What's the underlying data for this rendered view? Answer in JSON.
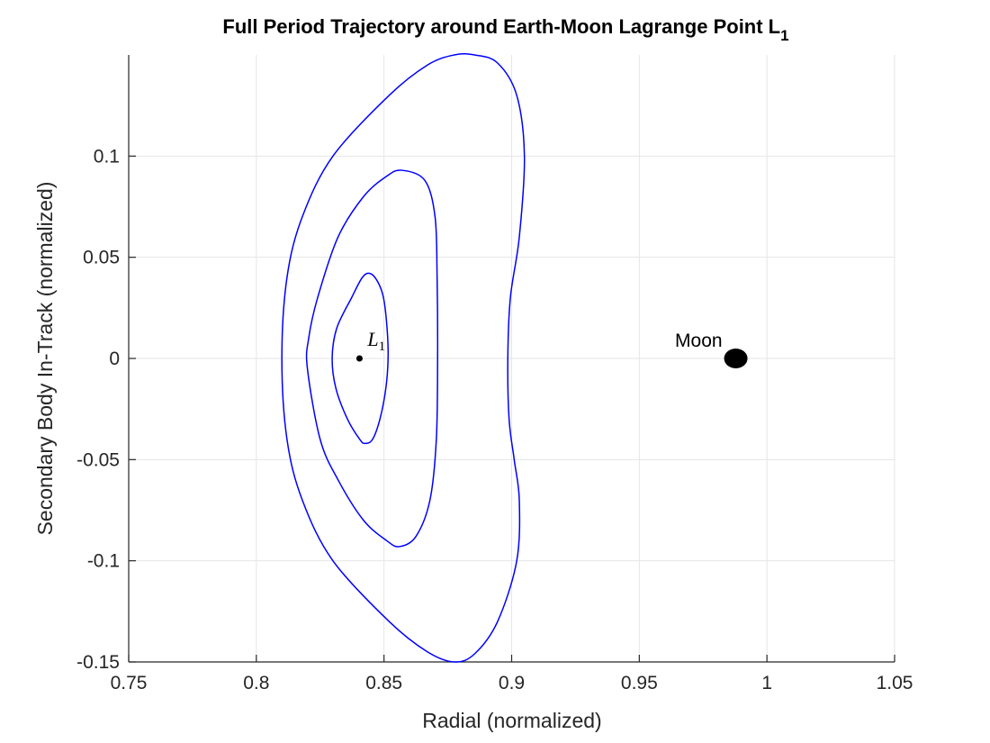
{
  "chart_data": {
    "type": "line",
    "title": "Full Period Trajectory around Earth-Moon Lagrange Point L",
    "title_subscript": "1",
    "xlabel": "Radial (normalized)",
    "ylabel": "Secondary Body In-Track (normalized)",
    "xlim": [
      0.75,
      1.05
    ],
    "ylim": [
      -0.15,
      0.15
    ],
    "xticks": [
      0.75,
      0.8,
      0.85,
      0.9,
      0.95,
      1,
      1.05
    ],
    "xtick_labels": [
      "0.75",
      "0.8",
      "0.85",
      "0.9",
      "0.95",
      "1",
      "1.05"
    ],
    "yticks": [
      -0.15,
      -0.1,
      -0.05,
      0,
      0.05,
      0.1
    ],
    "ytick_labels": [
      "-0.15",
      "-0.1",
      "-0.05",
      "0",
      "0.05",
      "0.1"
    ],
    "grid": true,
    "line_color": "#0000ff",
    "series": [
      {
        "x": [
          0.8425,
          0.8455,
          0.8484,
          0.8507,
          0.8516,
          0.8512,
          0.8498,
          0.8475,
          0.8445,
          0.8415,
          0.8373,
          0.8315,
          0.8297,
          0.8312,
          0.8357,
          0.8405,
          0.8425
        ],
        "y": [
          -0.042,
          -0.04,
          -0.03,
          -0.015,
          0.0,
          0.015,
          0.03,
          0.038,
          0.042,
          0.04,
          0.03,
          0.015,
          0.0,
          -0.015,
          -0.03,
          -0.04,
          -0.042
        ]
      },
      {
        "x": [
          0.856,
          0.8625,
          0.868,
          0.8705,
          0.871,
          0.8708,
          0.87,
          0.866,
          0.857,
          0.851,
          0.842,
          0.832,
          0.824,
          0.8205,
          0.82,
          0.825,
          0.832,
          0.842,
          0.851,
          0.856
        ],
        "y": [
          -0.093,
          -0.088,
          -0.07,
          -0.04,
          0.0,
          0.04,
          0.07,
          0.088,
          0.093,
          0.09,
          0.08,
          0.06,
          0.03,
          0.01,
          -0.005,
          -0.04,
          -0.06,
          -0.08,
          -0.09,
          -0.093
        ]
      },
      {
        "x": [
          0.8775,
          0.8855,
          0.8945,
          0.902,
          0.903,
          0.901,
          0.899,
          0.8985,
          0.8995,
          0.903,
          0.905,
          0.902,
          0.8945,
          0.8855,
          0.8775,
          0.867,
          0.852,
          0.83,
          0.818,
          0.812,
          0.81,
          0.812,
          0.818,
          0.83,
          0.852,
          0.867,
          0.8775
        ],
        "y": [
          -0.15,
          -0.146,
          -0.13,
          -0.1,
          -0.07,
          -0.05,
          -0.03,
          0.0,
          0.03,
          0.06,
          0.1,
          0.13,
          0.146,
          0.15,
          0.15,
          0.145,
          0.13,
          0.1,
          0.07,
          0.04,
          0.0,
          -0.04,
          -0.07,
          -0.1,
          -0.13,
          -0.145,
          -0.15
        ]
      }
    ],
    "markers": {
      "l1": {
        "x": 0.8404,
        "y": 0,
        "label": "L",
        "label_subscript": "1"
      },
      "moon": {
        "x": 0.9878,
        "y": 0,
        "label": "Moon"
      }
    }
  }
}
